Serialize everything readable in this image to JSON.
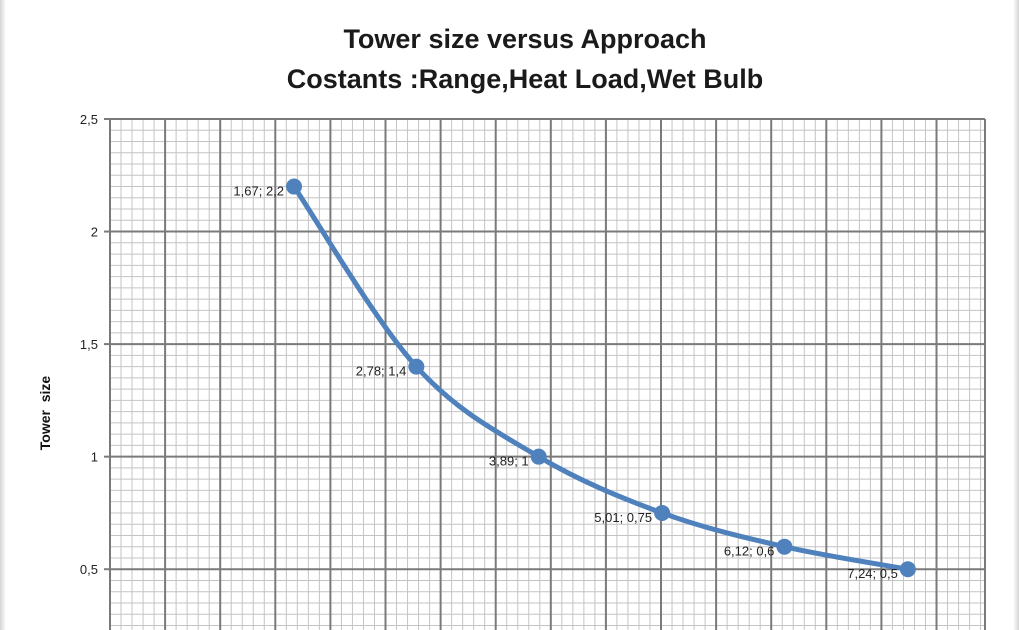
{
  "chart_data": {
    "type": "line",
    "title": "Tower size versus Approach",
    "subtitle": "Costants :Range,Heat Load,Wet Bulb",
    "xlabel": "",
    "ylabel": "Tower  size",
    "ylim": [
      0.23,
      2.5
    ],
    "xlim": [
      0.0,
      7.94
    ],
    "smooth": true,
    "grid": true,
    "y_ticks": [
      "0,5",
      "1",
      "1,5",
      "2",
      "2,5"
    ],
    "y_tick_values": [
      0.5,
      1.0,
      1.5,
      2.0,
      2.5
    ],
    "series": [
      {
        "color": "#4f81bd",
        "x": [
          1.67,
          2.78,
          3.89,
          5.01,
          6.12,
          7.24
        ],
        "y": [
          2.2,
          1.4,
          1.0,
          0.75,
          0.6,
          0.5
        ],
        "labels": [
          "1,67; 2,2",
          "2,78; 1,4",
          "3,89; 1",
          "5,01; 0,75",
          "6,12; 0,6",
          "7,24; 0,5"
        ]
      }
    ]
  }
}
